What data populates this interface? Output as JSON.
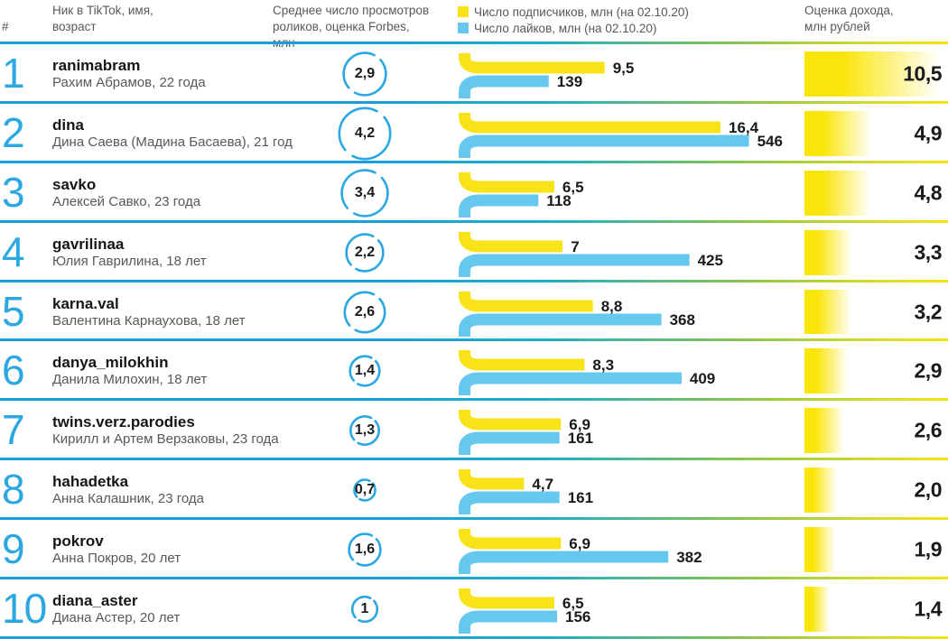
{
  "header": {
    "rank": "#",
    "nick_col": "Ник в TikTok, имя, возраст",
    "views_col": "Среднее число просмотров роликов, оценка Forbes, млн",
    "income_col": "Оценка дохода, млн рублей",
    "legend": {
      "subscribers": "Число подписчиков, млн (на 02.10.20)",
      "likes": "Число лайков, млн (на 02.10.20)"
    }
  },
  "colors": {
    "yellow": "#F7E318",
    "income_yellow": "#FAE50A",
    "blue": "#66C7EF",
    "accent_blue": "#2BA7E1",
    "text_dark": "#1A1A1A",
    "text_gray": "#58585A"
  },
  "chart_data": {
    "type": "bar",
    "title": "",
    "legend_position": "top",
    "series_units": {
      "avg_views": "млн просмотров",
      "subscribers": "млн подписчиков",
      "likes": "млн лайков",
      "income": "млн рублей"
    },
    "rows": [
      {
        "rank": "1",
        "nick": "ranimabram",
        "person": "Рахим Абрамов, 22 года",
        "avg_views": {
          "value": 2.9,
          "label": "2,9"
        },
        "subscribers": {
          "value": 9.5,
          "label": "9,5"
        },
        "likes": {
          "value": 139,
          "label": "139"
        },
        "income": {
          "value": 10.5,
          "label": "10,5"
        }
      },
      {
        "rank": "2",
        "nick": "dina",
        "person": "Дина Саева (Мадина Басаева), 21 год",
        "avg_views": {
          "value": 4.2,
          "label": "4,2"
        },
        "subscribers": {
          "value": 16.4,
          "label": "16,4"
        },
        "likes": {
          "value": 546,
          "label": "546"
        },
        "income": {
          "value": 4.9,
          "label": "4,9"
        }
      },
      {
        "rank": "3",
        "nick": "savko",
        "person": "Алексей Савко, 23 года",
        "avg_views": {
          "value": 3.4,
          "label": "3,4"
        },
        "subscribers": {
          "value": 6.5,
          "label": "6,5"
        },
        "likes": {
          "value": 118,
          "label": "118"
        },
        "income": {
          "value": 4.8,
          "label": "4,8"
        }
      },
      {
        "rank": "4",
        "nick": "gavrilinaa",
        "person": "Юлия Гаврилина, 18 лет",
        "avg_views": {
          "value": 2.2,
          "label": "2,2"
        },
        "subscribers": {
          "value": 7,
          "label": "7"
        },
        "likes": {
          "value": 425,
          "label": "425"
        },
        "income": {
          "value": 3.3,
          "label": "3,3"
        }
      },
      {
        "rank": "5",
        "nick": "karna.val",
        "person": "Валентина Карнаухова, 18 лет",
        "avg_views": {
          "value": 2.6,
          "label": "2,6"
        },
        "subscribers": {
          "value": 8.8,
          "label": "8,8"
        },
        "likes": {
          "value": 368,
          "label": "368"
        },
        "income": {
          "value": 3.2,
          "label": "3,2"
        }
      },
      {
        "rank": "6",
        "nick": "danya_milokhin",
        "person": "Данила Милохин, 18 лет",
        "avg_views": {
          "value": 1.4,
          "label": "1,4"
        },
        "subscribers": {
          "value": 8.3,
          "label": "8,3"
        },
        "likes": {
          "value": 409,
          "label": "409"
        },
        "income": {
          "value": 2.9,
          "label": "2,9"
        }
      },
      {
        "rank": "7",
        "nick": "twins.verz.parodies",
        "person": "Кирилл и Артем Верзаковы, 23 года",
        "avg_views": {
          "value": 1.3,
          "label": "1,3"
        },
        "subscribers": {
          "value": 6.9,
          "label": "6,9"
        },
        "likes": {
          "value": 161,
          "label": "161"
        },
        "income": {
          "value": 2.6,
          "label": "2,6"
        }
      },
      {
        "rank": "8",
        "nick": "hahadetka",
        "person": "Анна Калашник, 23 года",
        "avg_views": {
          "value": 0.7,
          "label": "0,7"
        },
        "subscribers": {
          "value": 4.7,
          "label": "4,7"
        },
        "likes": {
          "value": 161,
          "label": "161"
        },
        "income": {
          "value": 2.0,
          "label": "2,0"
        }
      },
      {
        "rank": "9",
        "nick": "pokrov",
        "person": "Анна Покров, 20 лет",
        "avg_views": {
          "value": 1.6,
          "label": "1,6"
        },
        "subscribers": {
          "value": 6.9,
          "label": "6,9"
        },
        "likes": {
          "value": 382,
          "label": "382"
        },
        "income": {
          "value": 1.9,
          "label": "1,9"
        }
      },
      {
        "rank": "10",
        "nick": "diana_aster",
        "person": "Диана Астер, 20 лет",
        "avg_views": {
          "value": 1,
          "label": "1"
        },
        "subscribers": {
          "value": 6.5,
          "label": "6,5"
        },
        "likes": {
          "value": 156,
          "label": "156"
        },
        "income": {
          "value": 1.4,
          "label": "1,4"
        }
      }
    ]
  }
}
